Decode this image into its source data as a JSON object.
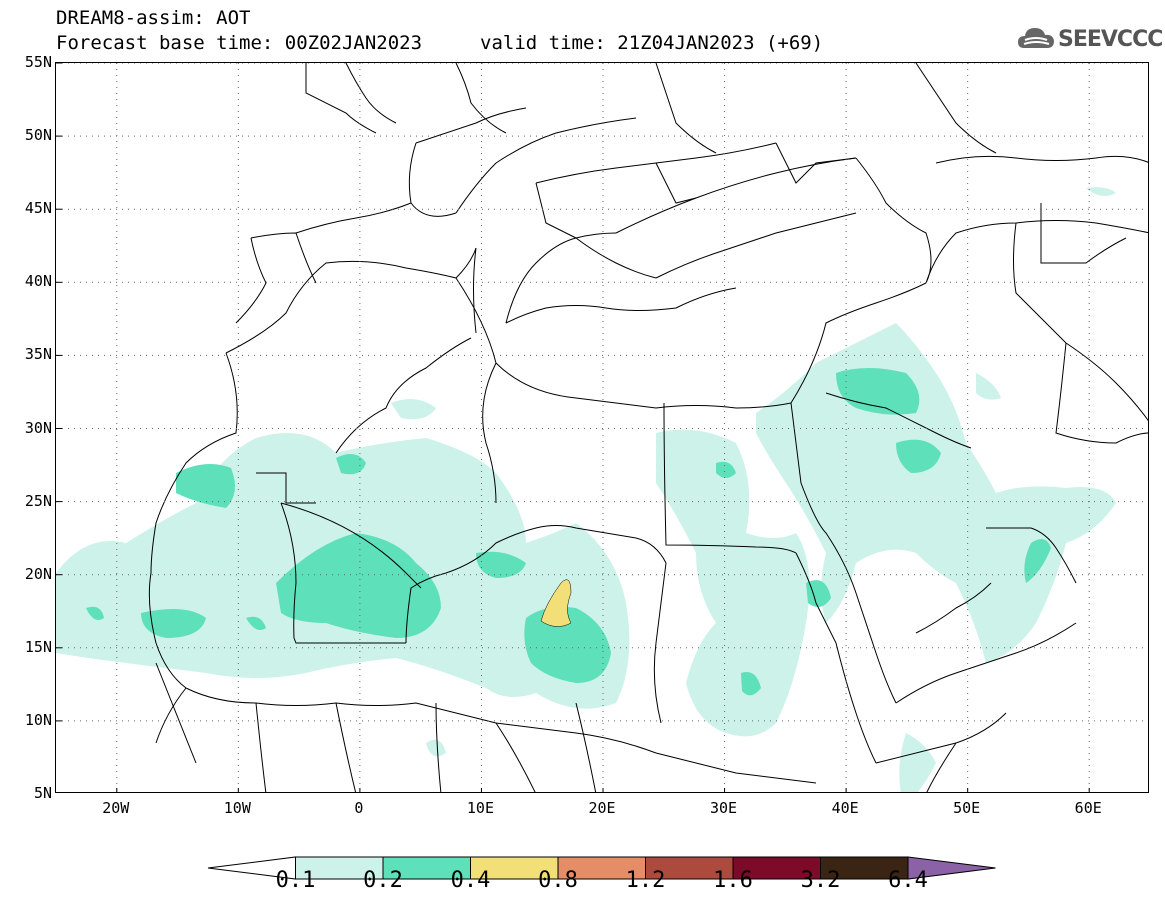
{
  "title": {
    "line1": "DREAM8-assim: AOT",
    "line2_base": "Forecast base time: 00Z02JAN2023",
    "line2_valid": "valid time: 21Z04JAN2023 (+69)"
  },
  "logo": {
    "text": "SEEVCCC",
    "icon": "cloud-icon"
  },
  "map": {
    "lat_labels": [
      "55N",
      "50N",
      "45N",
      "40N",
      "35N",
      "30N",
      "25N",
      "20N",
      "15N",
      "10N",
      "5N"
    ],
    "lon_labels": [
      "20W",
      "10W",
      "0",
      "10E",
      "20E",
      "30E",
      "40E",
      "50E",
      "60E"
    ],
    "lat_range": [
      5,
      55
    ],
    "lon_range": [
      -25,
      65
    ],
    "gridlines": "dotted"
  },
  "colorbar": {
    "levels": [
      "0.1",
      "0.2",
      "0.4",
      "0.8",
      "1.2",
      "1.6",
      "3.2",
      "6.4"
    ],
    "colors": [
      "#ffffff",
      "#cdf2ea",
      "#5ee0bb",
      "#f3df77",
      "#e48d66",
      "#ac4a3e",
      "#7c0a28",
      "#3a2414",
      "#8c62a6"
    ]
  }
}
